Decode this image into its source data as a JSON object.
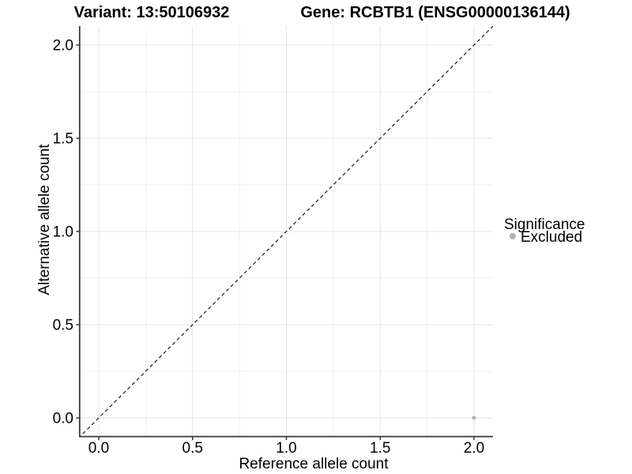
{
  "figure": {
    "title_left": "Variant: 13:50106932",
    "title_right": "Gene: RCBTB1 (ENSG00000136144)"
  },
  "axes": {
    "x_label": "Reference allele count",
    "y_label": "Alternative allele count"
  },
  "legend": {
    "title": "Significance",
    "position": "right",
    "items": [
      {
        "label": "Excluded",
        "color": "#b3b3b3"
      }
    ]
  },
  "chart_data": {
    "type": "scatter",
    "title": "Variant: 13:50106932   Gene: RCBTB1 (ENSG00000136144)",
    "xlabel": "Reference allele count",
    "ylabel": "Alternative allele count",
    "xlim": [
      -0.105,
      2.105
    ],
    "ylim": [
      -0.105,
      2.105
    ],
    "x_ticks": [
      0,
      0.5,
      1,
      1.5,
      2
    ],
    "x_tick_labels": [
      "0.0",
      "0.5",
      "1.0",
      "1.5",
      "2.0"
    ],
    "y_ticks": [
      0,
      0.5,
      1,
      1.5,
      2
    ],
    "y_tick_labels": [
      "0.0",
      "0.5",
      "1.0",
      "1.5",
      "2.0"
    ],
    "x_minor_ticks": [
      0.25,
      0.75,
      1.25,
      1.75
    ],
    "y_minor_ticks": [
      0.25,
      0.75,
      1.25,
      1.75
    ],
    "grid": "major+minor",
    "legend_position": "right",
    "reference_line": {
      "kind": "identity y=x",
      "style": "dashed",
      "color": "#1a1a1a"
    },
    "series": [
      {
        "name": "Excluded",
        "color": "#b3b3b3",
        "points": [
          {
            "x": 2.0,
            "y": 0.0
          }
        ]
      }
    ]
  },
  "colors": {
    "background": "#ffffff",
    "grid_major": "#e3e3e3",
    "grid_minor": "#f1f1f1",
    "axis_line": "#383838",
    "tick_mark": "#383838",
    "text": "#000000",
    "excluded": "#b3b3b3"
  }
}
